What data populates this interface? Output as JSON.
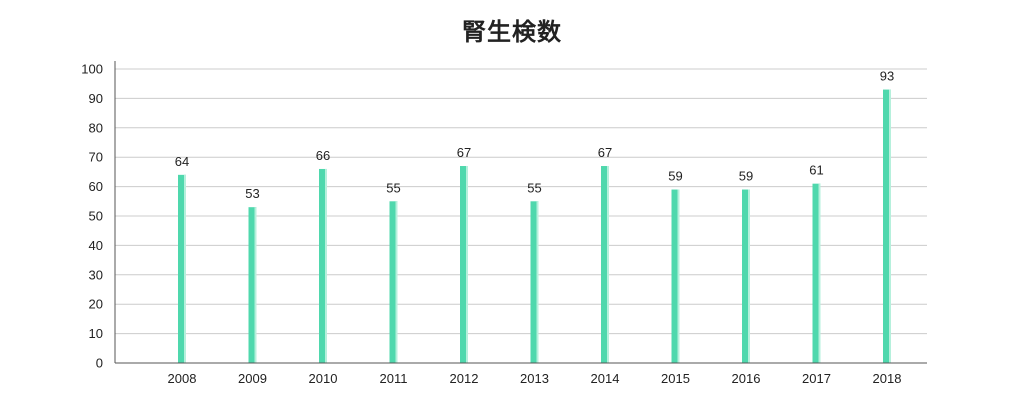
{
  "chart_data": {
    "type": "bar",
    "title": "腎生検数",
    "xlabel": "",
    "ylabel": "",
    "categories": [
      "2008",
      "2009",
      "2010",
      "2011",
      "2012",
      "2013",
      "2014",
      "2015",
      "2016",
      "2017",
      "2018"
    ],
    "values": [
      64,
      53,
      66,
      55,
      67,
      55,
      67,
      59,
      59,
      61,
      93
    ],
    "ylim": [
      0,
      100
    ],
    "yticks": [
      0,
      10,
      20,
      30,
      40,
      50,
      60,
      70,
      80,
      90,
      100
    ],
    "grid": true,
    "legend": "none",
    "bar_color": "#4fd8ad",
    "bar_highlight": "#b6f0dc",
    "grid_color": "#cccccc",
    "axis_color": "#555555"
  }
}
